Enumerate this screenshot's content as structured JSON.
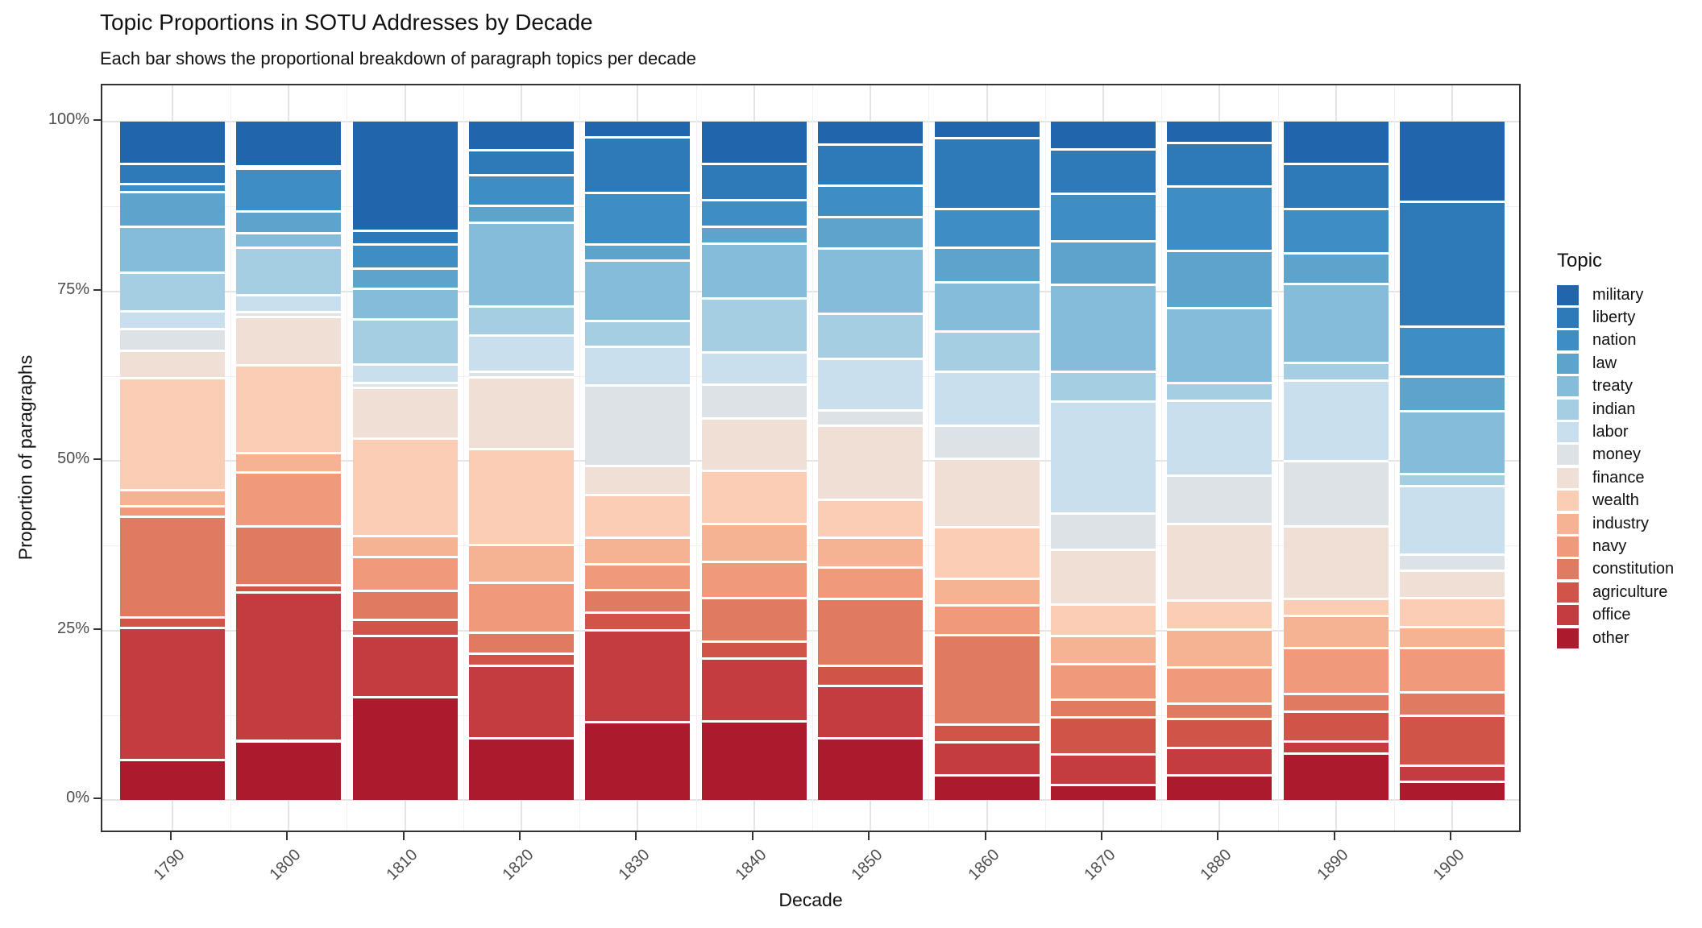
{
  "title": "Topic Proportions in SOTU Addresses by Decade",
  "subtitle": "Each bar shows the proportional breakdown of paragraph topics per decade",
  "x_axis": {
    "title": "Decade"
  },
  "y_axis": {
    "title": "Proportion of paragraphs",
    "tick_labels": [
      "0%",
      "25%",
      "50%",
      "75%",
      "100%"
    ],
    "tick_values": [
      0,
      25,
      50,
      75,
      100
    ]
  },
  "legend": {
    "title": "Topic",
    "position": "right"
  },
  "colors": {
    "axis_line": "#333333",
    "grid_major": "#e4e4e4",
    "grid_minor": "#f0f0f0",
    "tick_label": "#4d4d4d",
    "separator": "#ffffff"
  },
  "chart_data": {
    "type": "bar",
    "variant": "stacked-proportional",
    "title": "Topic Proportions in SOTU Addresses by Decade",
    "subtitle": "Each bar shows the proportional breakdown of paragraph topics per decade",
    "xlabel": "Decade",
    "ylabel": "Proportion of paragraphs",
    "ylim": [
      0,
      100
    ],
    "y_units": "percent",
    "grid": true,
    "legend_position": "right",
    "stack_order": "first series on top, last series at bottom",
    "categories": [
      "1790",
      "1800",
      "1810",
      "1820",
      "1830",
      "1840",
      "1850",
      "1860",
      "1870",
      "1880",
      "1890",
      "1900"
    ],
    "series": [
      {
        "name": "military",
        "color": "#2166AC",
        "values": [
          6.0,
          6.4,
          15.9,
          4.1,
          2.1,
          6.1,
          3.2,
          2.3,
          3.9,
          3.0,
          6.1,
          11.6
        ]
      },
      {
        "name": "liberty",
        "color": "#2E79B7",
        "values": [
          3.0,
          0.4,
          2.0,
          3.6,
          8.3,
          5.3,
          6.1,
          10.4,
          6.5,
          6.4,
          6.6,
          18.5
        ]
      },
      {
        "name": "nation",
        "color": "#3F8EC3",
        "values": [
          1.2,
          6.4,
          3.5,
          4.6,
          7.6,
          3.9,
          4.6,
          5.6,
          7.1,
          9.5,
          6.5,
          7.3
        ]
      },
      {
        "name": "law",
        "color": "#5EA3CC",
        "values": [
          5.1,
          3.2,
          3.0,
          2.4,
          2.3,
          2.5,
          4.6,
          5.1,
          6.4,
          8.4,
          4.6,
          5.1
        ]
      },
      {
        "name": "treaty",
        "color": "#85BCD9",
        "values": [
          6.8,
          2.1,
          4.5,
          12.4,
          8.9,
          8.1,
          9.6,
          7.3,
          12.8,
          11.1,
          11.6,
          9.3
        ]
      },
      {
        "name": "indian",
        "color": "#A5CEE3",
        "values": [
          5.7,
          7.1,
          6.6,
          4.3,
          3.9,
          7.9,
          6.6,
          5.9,
          4.3,
          2.6,
          2.6,
          1.8
        ]
      },
      {
        "name": "labor",
        "color": "#C9DFEE",
        "values": [
          2.6,
          2.5,
          2.7,
          5.3,
          5.6,
          4.8,
          7.6,
          7.9,
          16.6,
          11.1,
          11.9,
          10.1
        ]
      },
      {
        "name": "money",
        "color": "#DDE2E7",
        "values": [
          3.2,
          0.7,
          0.7,
          0.9,
          11.9,
          4.9,
          2.3,
          4.9,
          5.3,
          7.1,
          9.6,
          2.3
        ]
      },
      {
        "name": "finance",
        "color": "#EFDFD5",
        "values": [
          4.1,
          7.2,
          7.5,
          10.5,
          4.3,
          7.7,
          10.9,
          10.1,
          8.1,
          11.3,
          10.7,
          4.1
        ]
      },
      {
        "name": "wealth",
        "color": "#FACDB4",
        "values": [
          16.4,
          13.0,
          14.3,
          14.2,
          6.3,
          7.9,
          5.6,
          7.5,
          4.6,
          4.3,
          2.5,
          4.3
        ]
      },
      {
        "name": "industry",
        "color": "#F6B394",
        "values": [
          2.4,
          2.9,
          3.0,
          5.6,
          3.9,
          5.6,
          4.3,
          3.9,
          4.1,
          5.6,
          4.7,
          3.0
        ]
      },
      {
        "name": "navy",
        "color": "#F09A7B",
        "values": [
          1.6,
          8.0,
          5.0,
          7.4,
          3.8,
          5.3,
          4.6,
          4.4,
          5.3,
          5.3,
          6.8,
          6.6
        ]
      },
      {
        "name": "constitution",
        "color": "#E07A60",
        "values": [
          14.8,
          8.7,
          4.3,
          3.0,
          3.4,
          6.4,
          9.9,
          13.2,
          2.6,
          2.3,
          2.6,
          3.4
        ]
      },
      {
        "name": "agriculture",
        "color": "#D05548",
        "values": [
          1.6,
          1.1,
          2.3,
          1.8,
          2.6,
          2.5,
          3.0,
          2.5,
          5.4,
          4.3,
          4.4,
          7.4
        ]
      },
      {
        "name": "office",
        "color": "#C33C40",
        "values": [
          19.4,
          22.0,
          9.0,
          10.7,
          13.6,
          9.3,
          7.6,
          4.9,
          4.5,
          4.0,
          1.8,
          2.4
        ]
      },
      {
        "name": "other",
        "color": "#AC1A2E",
        "values": [
          6.1,
          8.9,
          15.3,
          9.3,
          11.6,
          11.7,
          9.3,
          3.8,
          2.4,
          3.8,
          7.0,
          2.8
        ]
      }
    ]
  }
}
